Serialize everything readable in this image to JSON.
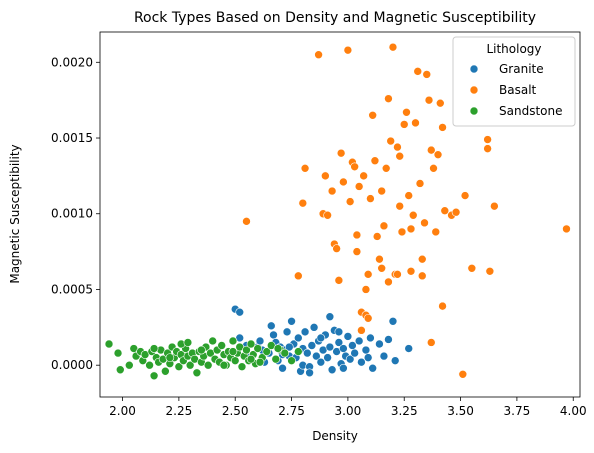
{
  "chart_data": {
    "type": "scatter",
    "title": "Rock Types Based on Density and Magnetic Susceptibility",
    "xlabel": "Density",
    "ylabel": "Magnetic Susceptibility",
    "xlim": [
      1.9,
      4.03
    ],
    "ylim": [
      -0.00021,
      0.0022
    ],
    "x_ticks": [
      2.0,
      2.25,
      2.5,
      2.75,
      3.0,
      3.25,
      3.5,
      3.75,
      4.0
    ],
    "x_tick_labels": [
      "2.00",
      "2.25",
      "2.50",
      "2.75",
      "3.00",
      "3.25",
      "3.50",
      "3.75",
      "4.00"
    ],
    "y_ticks": [
      0.0,
      0.0005,
      0.001,
      0.0015,
      0.002
    ],
    "y_tick_labels": [
      "0.0000",
      "0.0005",
      "0.0010",
      "0.0015",
      "0.0020"
    ],
    "grid": false,
    "legend": {
      "title": "Lithology",
      "placement": "top-right"
    },
    "series": [
      {
        "name": "Granite",
        "color": "#1f77b4",
        "points": [
          [
            2.5,
            0.00037
          ],
          [
            2.52,
            0.00035
          ],
          [
            2.52,
            0.00018
          ],
          [
            2.55,
            0.00013
          ],
          [
            2.57,
            6e-05
          ],
          [
            2.6,
            0.00012
          ],
          [
            2.61,
            0.00016
          ],
          [
            2.62,
            0.0001
          ],
          [
            2.63,
            2e-05
          ],
          [
            2.65,
            8e-05
          ],
          [
            2.66,
            0.00026
          ],
          [
            2.67,
            0.0002
          ],
          [
            2.68,
            0.00015
          ],
          [
            2.69,
            3e-05
          ],
          [
            2.7,
            0.00012
          ],
          [
            2.71,
            -2e-05
          ],
          [
            2.72,
            0.0001
          ],
          [
            2.73,
            0.00022
          ],
          [
            2.74,
            6e-05
          ],
          [
            2.75,
            0.00029
          ],
          [
            2.76,
            0.00014
          ],
          [
            2.77,
            5e-05
          ],
          [
            2.78,
            0.00018
          ],
          [
            2.79,
            -4e-05
          ],
          [
            2.8,
            0.00011
          ],
          [
            2.8,
            0.0
          ],
          [
            2.81,
            0.00022
          ],
          [
            2.82,
            8e-05
          ],
          [
            2.83,
            -1e-05
          ],
          [
            2.84,
            0.00013
          ],
          [
            2.85,
            0.00025
          ],
          [
            2.86,
            6e-05
          ],
          [
            2.87,
            0.00016
          ],
          [
            2.88,
            2e-05
          ],
          [
            2.89,
            0.0001
          ],
          [
            2.9,
            0.0002
          ],
          [
            2.91,
            5e-05
          ],
          [
            2.92,
            0.00032
          ],
          [
            2.92,
            0.00012
          ],
          [
            2.93,
            -3e-05
          ],
          [
            2.94,
            0.00023
          ],
          [
            2.95,
            9e-05
          ],
          [
            2.96,
            0.00015
          ],
          [
            2.97,
            1e-05
          ],
          [
            2.98,
            0.00011
          ],
          [
            2.99,
            6e-05
          ],
          [
            3.0,
            0.00019
          ],
          [
            3.01,
            4e-05
          ],
          [
            3.02,
            0.00013
          ],
          [
            3.03,
            8e-05
          ],
          [
            3.05,
            0.00016
          ],
          [
            3.06,
            2e-05
          ],
          [
            3.08,
            0.0001
          ],
          [
            3.1,
            0.00018
          ],
          [
            3.11,
            -2e-05
          ],
          [
            3.14,
            0.00014
          ],
          [
            3.16,
            6e-05
          ],
          [
            3.18,
            0.00017
          ],
          [
            3.2,
            0.00029
          ],
          [
            3.21,
            3e-05
          ],
          [
            3.27,
            0.00011
          ],
          [
            2.88,
            0.00018
          ],
          [
            2.74,
            0.00012
          ],
          [
            2.96,
            0.00022
          ],
          [
            3.09,
            5e-05
          ],
          [
            2.83,
            -5e-05
          ],
          [
            2.98,
            -2e-05
          ],
          [
            2.71,
            7e-05
          ]
        ]
      },
      {
        "name": "Basalt",
        "color": "#ff7f0e",
        "points": [
          [
            2.55,
            0.00095
          ],
          [
            2.78,
            0.00059
          ],
          [
            2.8,
            0.00107
          ],
          [
            2.81,
            0.0013
          ],
          [
            2.87,
            0.00205
          ],
          [
            2.89,
            0.001
          ],
          [
            2.9,
            0.00125
          ],
          [
            2.91,
            0.00099
          ],
          [
            2.93,
            0.00115
          ],
          [
            2.94,
            0.0008
          ],
          [
            2.95,
            0.00077
          ],
          [
            2.97,
            0.0014
          ],
          [
            2.98,
            0.00121
          ],
          [
            3.0,
            0.00208
          ],
          [
            3.01,
            0.00108
          ],
          [
            3.02,
            0.00134
          ],
          [
            3.03,
            0.00131
          ],
          [
            3.04,
            0.00086
          ],
          [
            3.04,
            0.00075
          ],
          [
            3.05,
            0.00118
          ],
          [
            3.06,
            0.00035
          ],
          [
            3.07,
            0.00125
          ],
          [
            3.08,
            0.0005
          ],
          [
            3.09,
            0.0006
          ],
          [
            3.1,
            0.0011
          ],
          [
            3.11,
            0.00165
          ],
          [
            3.12,
            0.00135
          ],
          [
            3.13,
            0.00085
          ],
          [
            3.14,
            0.0007
          ],
          [
            3.15,
            0.00115
          ],
          [
            3.16,
            0.00092
          ],
          [
            3.17,
            0.0013
          ],
          [
            3.18,
            0.00176
          ],
          [
            3.19,
            0.00148
          ],
          [
            3.2,
            0.0021
          ],
          [
            3.21,
            0.0006
          ],
          [
            3.22,
            0.00144
          ],
          [
            3.23,
            0.00138
          ],
          [
            3.24,
            0.00088
          ],
          [
            3.25,
            0.00159
          ],
          [
            3.26,
            0.00167
          ],
          [
            3.27,
            0.00112
          ],
          [
            3.28,
            0.00062
          ],
          [
            3.29,
            0.00099
          ],
          [
            3.3,
            0.0016
          ],
          [
            3.31,
            0.00194
          ],
          [
            3.32,
            0.0012
          ],
          [
            3.33,
            0.00059
          ],
          [
            3.34,
            0.00094
          ],
          [
            3.35,
            0.00192
          ],
          [
            3.36,
            0.00175
          ],
          [
            3.37,
            0.00142
          ],
          [
            3.38,
            0.0013
          ],
          [
            3.39,
            0.00088
          ],
          [
            3.4,
            0.00139
          ],
          [
            3.41,
            0.00173
          ],
          [
            3.42,
            0.00157
          ],
          [
            3.43,
            0.00102
          ],
          [
            3.46,
            0.00099
          ],
          [
            3.48,
            0.00101
          ],
          [
            3.52,
            0.00112
          ],
          [
            3.55,
            0.00064
          ],
          [
            3.62,
            0.00143
          ],
          [
            3.62,
            0.00149
          ],
          [
            3.63,
            0.00062
          ],
          [
            3.65,
            0.00105
          ],
          [
            3.97,
            0.0009
          ],
          [
            3.51,
            -6e-05
          ],
          [
            3.37,
            0.00015
          ],
          [
            3.42,
            0.00039
          ],
          [
            3.08,
            0.00033
          ],
          [
            3.09,
            0.00031
          ],
          [
            3.06,
            0.00023
          ],
          [
            3.22,
            0.0006
          ],
          [
            3.18,
            0.00055
          ],
          [
            2.96,
            0.00056
          ],
          [
            3.15,
            0.00064
          ],
          [
            3.23,
            0.00105
          ],
          [
            3.28,
            0.0009
          ],
          [
            3.33,
            0.0007
          ]
        ]
      },
      {
        "name": "Sandstone",
        "color": "#2ca02c",
        "points": [
          [
            1.94,
            0.00014
          ],
          [
            1.98,
            8e-05
          ],
          [
            1.99,
            -3e-05
          ],
          [
            2.03,
            0.0
          ],
          [
            2.05,
            0.00011
          ],
          [
            2.06,
            6e-05
          ],
          [
            2.08,
            9e-05
          ],
          [
            2.09,
            3e-05
          ],
          [
            2.1,
            7e-05
          ],
          [
            2.12,
            0.0
          ],
          [
            2.13,
            9e-05
          ],
          [
            2.14,
            -7e-05
          ],
          [
            2.15,
            5e-05
          ],
          [
            2.16,
            2e-05
          ],
          [
            2.17,
            0.0001
          ],
          [
            2.18,
            4e-05
          ],
          [
            2.19,
            -4e-05
          ],
          [
            2.2,
            8e-05
          ],
          [
            2.21,
            1e-05
          ],
          [
            2.22,
            0.00012
          ],
          [
            2.23,
            5e-05
          ],
          [
            2.24,
            9e-05
          ],
          [
            2.25,
            -1e-05
          ],
          [
            2.26,
            7e-05
          ],
          [
            2.27,
            3e-05
          ],
          [
            2.28,
            0.00011
          ],
          [
            2.29,
            6e-05
          ],
          [
            2.3,
            0.0
          ],
          [
            2.31,
            8e-05
          ],
          [
            2.32,
            4e-05
          ],
          [
            2.33,
            -5e-05
          ],
          [
            2.34,
            9e-05
          ],
          [
            2.35,
            2e-05
          ],
          [
            2.36,
            6e-05
          ],
          [
            2.37,
            0.00012
          ],
          [
            2.38,
            0.0
          ],
          [
            2.39,
            8e-05
          ],
          [
            2.4,
            0.00016
          ],
          [
            2.41,
            4e-05
          ],
          [
            2.42,
            0.0001
          ],
          [
            2.43,
            2e-05
          ],
          [
            2.44,
            0.00013
          ],
          [
            2.45,
            7e-05
          ],
          [
            2.46,
            0.0
          ],
          [
            2.47,
            9e-05
          ],
          [
            2.48,
            5e-05
          ],
          [
            2.49,
            0.00016
          ],
          [
            2.5,
            3e-05
          ],
          [
            2.51,
            8e-05
          ],
          [
            2.52,
            0.00012
          ],
          [
            2.53,
            -1e-05
          ],
          [
            2.54,
            6e-05
          ],
          [
            2.55,
            0.0001
          ],
          [
            2.56,
            3e-05
          ],
          [
            2.57,
            0.00014
          ],
          [
            2.58,
            7e-05
          ],
          [
            2.59,
            1e-05
          ],
          [
            2.6,
            0.00011
          ],
          [
            2.62,
            5e-05
          ],
          [
            2.64,
            9e-05
          ],
          [
            2.66,
            0.00013
          ],
          [
            2.68,
            4e-05
          ],
          [
            2.7,
            0.0001
          ],
          [
            2.72,
            8e-05
          ],
          [
            2.75,
            3e-05
          ],
          [
            2.78,
            9e-05
          ],
          [
            2.26,
            0.00014
          ],
          [
            2.21,
            5e-05
          ],
          [
            2.29,
            0.00015
          ],
          [
            2.45,
            0.0
          ],
          [
            2.35,
            0.0001
          ],
          [
            2.61,
            2e-05
          ],
          [
            2.49,
            9e-05
          ],
          [
            2.57,
            4e-05
          ],
          [
            2.69,
            0.00011
          ],
          [
            2.14,
            0.00011
          ]
        ]
      }
    ]
  }
}
